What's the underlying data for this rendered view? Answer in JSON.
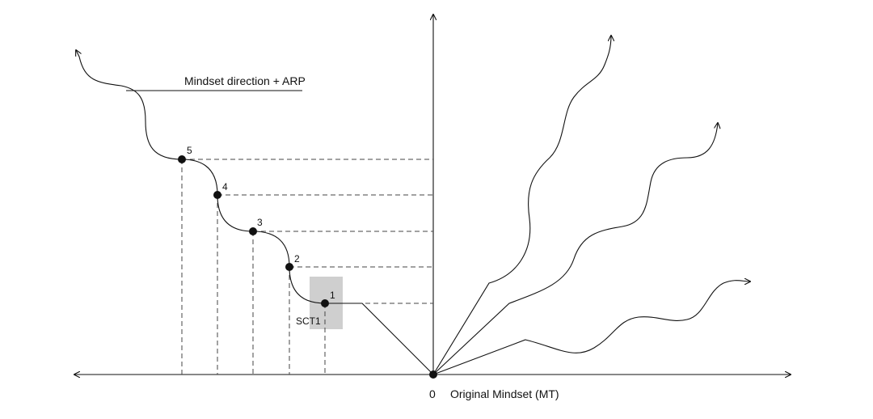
{
  "labels": {
    "direction": "Mindset direction + ARP",
    "origin": "0",
    "x_axis": "Original Mindset (MT)",
    "highlight": "SCT1"
  },
  "points": [
    {
      "id": "1"
    },
    {
      "id": "2"
    },
    {
      "id": "3"
    },
    {
      "id": "4"
    },
    {
      "id": "5"
    }
  ],
  "colors": {
    "line": "#111111",
    "dash": "#444444",
    "highlight_box": "#cfcfcf"
  }
}
